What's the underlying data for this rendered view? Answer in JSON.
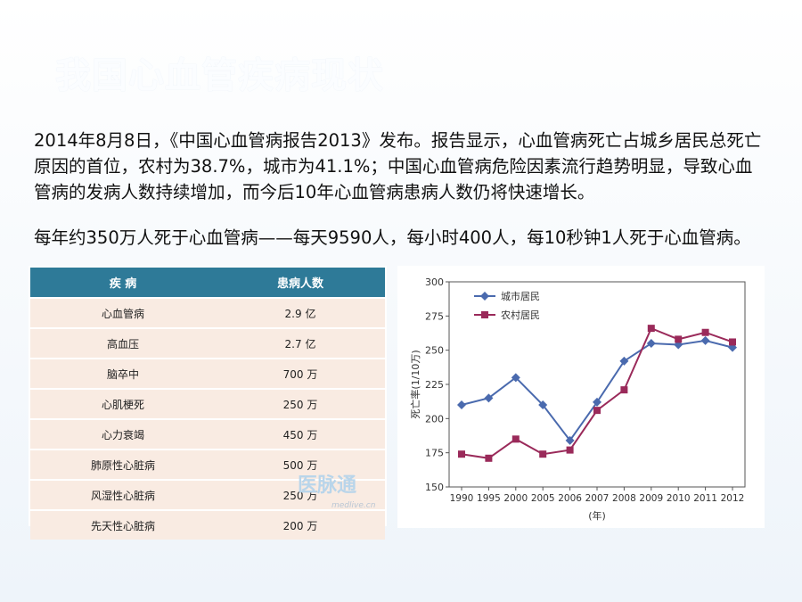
{
  "slide": {
    "title": "我国心血管疾病现状",
    "paragraph1": "2014年8月8日，《中国心血管病报告2013》发布。报告显示，心血管病死亡占城乡居民总死亡原因的首位，农村为38.7%，城市为41.1%；中国心血管病危险因素流行趋势明显，导致心血管病的发病人数持续增加，而今后10年心血管病患病人数仍将快速增长。",
    "paragraph2": " 每年约350万人死于心血管病——每天9590人，每小时400人，每10秒钟1人死于心血管病。"
  },
  "table": {
    "headers": [
      "疾 病",
      "患病人数"
    ],
    "rows": [
      [
        "心血管病",
        "2.9 亿"
      ],
      [
        "高血压",
        "2.7 亿"
      ],
      [
        "脑卒中",
        "700 万"
      ],
      [
        "心肌梗死",
        "250 万"
      ],
      [
        "心力衰竭",
        "450 万"
      ],
      [
        "肺原性心脏病",
        "500 万"
      ],
      [
        "风湿性心脏病",
        "250 万"
      ],
      [
        "先天性心脏病",
        "200 万"
      ]
    ],
    "watermark": {
      "logo": "医脉通",
      "sub": "medlive.cn"
    }
  },
  "chart_data": {
    "type": "line",
    "categories": [
      "1990",
      "1995",
      "2000",
      "2005",
      "2006",
      "2007",
      "2008",
      "2009",
      "2010",
      "2011",
      "2012"
    ],
    "series": [
      {
        "name": "城市居民",
        "color": "#4a6aae",
        "marker": "diamond",
        "values": [
          210,
          215,
          230,
          210,
          184,
          212,
          242,
          255,
          254,
          257,
          252
        ]
      },
      {
        "name": "农村居民",
        "color": "#9a2a5a",
        "marker": "square",
        "values": [
          174,
          171,
          185,
          174,
          177,
          206,
          221,
          266,
          258,
          263,
          256
        ]
      }
    ],
    "yticks": [
      150,
      175,
      200,
      225,
      250,
      275,
      300
    ],
    "ylim": [
      150,
      300
    ],
    "ylabel": "死亡率(1/10万)",
    "xlabel": "(年)",
    "legend": "top-left",
    "grid": false
  }
}
